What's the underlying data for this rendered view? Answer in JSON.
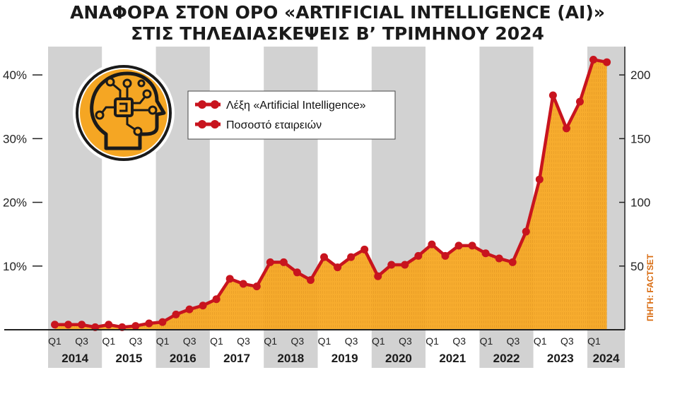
{
  "title_line1": "ΑΝΑΦΟΡΑ ΣΤΟΝ ΟΡΟ «ARTIFICIAL INTELLIGENCE (AI)»",
  "title_line2": "ΣΤΙΣ ΤΗΛΕΔΙΑΣΚΕΨΕΙΣ Β’ ΤΡΙΜΗΝΟΥ 2024",
  "source": "ΠΗΓΗ: FACTSET",
  "colors": {
    "line": "#c8141e",
    "area": "#f7a823",
    "area_dark": "#d98a12",
    "band_gray": "#d2d2d2",
    "band_white": "#ffffff",
    "icon_bg": "#f5a623"
  },
  "icon": "ai-head-circuit-icon",
  "chart_data": {
    "type": "area",
    "title": "ΑΝΑΦΟΡΑ ΣΤΟΝ ΟΡΟ «ARTIFICIAL INTELLIGENCE (AI)» ΣΤΙΣ ΤΗΛΕΔΙΑΣΚΕΨΕΙΣ Β’ ΤΡΙΜΗΝΟΥ 2024",
    "years": [
      "2014",
      "2015",
      "2016",
      "2017",
      "2018",
      "2019",
      "2020",
      "2021",
      "2022",
      "2023",
      "2024"
    ],
    "quarter_labels": [
      "Q1",
      "Q3"
    ],
    "y_left": {
      "ticks": [
        10,
        20,
        30,
        40
      ],
      "tick_labels": [
        "10%",
        "20%",
        "30%",
        "40%"
      ],
      "range": [
        0,
        45
      ]
    },
    "y_right": {
      "ticks": [
        50,
        100,
        150,
        200
      ],
      "range": [
        0,
        225
      ]
    },
    "legend": [
      {
        "name": "Λέξη «Artificial Intelligence»"
      },
      {
        "name": "Ποσοστό εταιρειών"
      }
    ],
    "legend_placement": "top-left",
    "series": [
      {
        "name": "Λέξη «Artificial Intelligence»",
        "axis": "right",
        "values": [
          4,
          4,
          4,
          2,
          4,
          2,
          3,
          5,
          6,
          12,
          16,
          19,
          24,
          40,
          36,
          34,
          53,
          53,
          45,
          39,
          57,
          49,
          57,
          63,
          42,
          51,
          51,
          58,
          67,
          58,
          66,
          66,
          60,
          56,
          53,
          77,
          118,
          184,
          158,
          179,
          212,
          210
        ]
      }
    ],
    "grid": false
  }
}
